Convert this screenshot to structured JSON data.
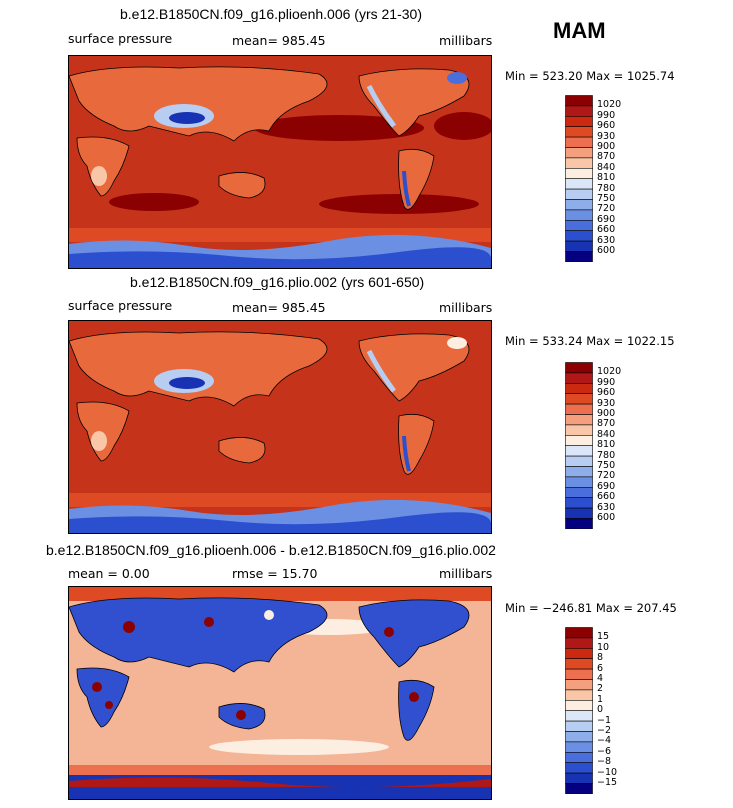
{
  "season": "MAM",
  "panels": [
    {
      "title": "b.e12.B1850CN.f09_g16.plioenh.006 (yrs 21-30)",
      "left_label": "surface pressure",
      "mid_label": "mean=  985.45",
      "units": "millibars",
      "minmax": "Min = 523.20  Max = 1025.74",
      "colorbar": {
        "labels": [
          "1020",
          "990",
          "960",
          "930",
          "900",
          "870",
          "840",
          "810",
          "780",
          "750",
          "720",
          "690",
          "660",
          "630",
          "600"
        ],
        "colors": [
          "#8b0000",
          "#b01818",
          "#cc2a10",
          "#de4a24",
          "#ec7050",
          "#f4a07e",
          "#f9c7a8",
          "#fdeee2",
          "#dbe7f8",
          "#b8cdf2",
          "#8eaeea",
          "#6b8fe2",
          "#4a6edb",
          "#2b4fcf",
          "#1733b3",
          "#040080"
        ]
      },
      "map": {
        "ocean_color": "#c5341a",
        "land_color": "#e86a3c"
      }
    },
    {
      "title": "b.e12.B1850CN.f09_g16.plio.002 (yrs 601-650)",
      "left_label": "surface pressure",
      "mid_label": "mean=  985.45",
      "units": "millibars",
      "minmax": "Min = 533.24  Max = 1022.15",
      "colorbar": {
        "labels": [
          "1020",
          "990",
          "960",
          "930",
          "900",
          "870",
          "840",
          "810",
          "780",
          "750",
          "720",
          "690",
          "660",
          "630",
          "600"
        ],
        "colors": [
          "#8b0000",
          "#b01818",
          "#cc2a10",
          "#de4a24",
          "#ec7050",
          "#f4a07e",
          "#f9c7a8",
          "#fdeee2",
          "#dbe7f8",
          "#b8cdf2",
          "#8eaeea",
          "#6b8fe2",
          "#4a6edb",
          "#2b4fcf",
          "#1733b3",
          "#040080"
        ]
      },
      "map": {
        "ocean_color": "#c5341a",
        "land_color": "#e86a3c"
      }
    },
    {
      "title": "b.e12.B1850CN.f09_g16.plioenh.006 - b.e12.B1850CN.f09_g16.plio.002",
      "left_label": "mean =    0.00",
      "mid_label": "rmse =   15.70",
      "units": "millibars",
      "minmax": "Min = −246.81  Max = 207.45",
      "colorbar": {
        "labels": [
          "15",
          "10",
          "8",
          "6",
          "4",
          "2",
          "1",
          "0",
          "−1",
          "−2",
          "−4",
          "−6",
          "−8",
          "−10",
          "−15"
        ],
        "colors": [
          "#8b0000",
          "#b01818",
          "#cc2a10",
          "#de4a24",
          "#ec7050",
          "#f4a07e",
          "#f9c7a8",
          "#fdeee2",
          "#dbe7f8",
          "#b8cdf2",
          "#8eaeea",
          "#6b8fe2",
          "#4a6edb",
          "#2b4fcf",
          "#1733b3",
          "#040080"
        ]
      },
      "map": {
        "ocean_color": "#f4b496",
        "land_color": "#3050d0"
      }
    }
  ]
}
